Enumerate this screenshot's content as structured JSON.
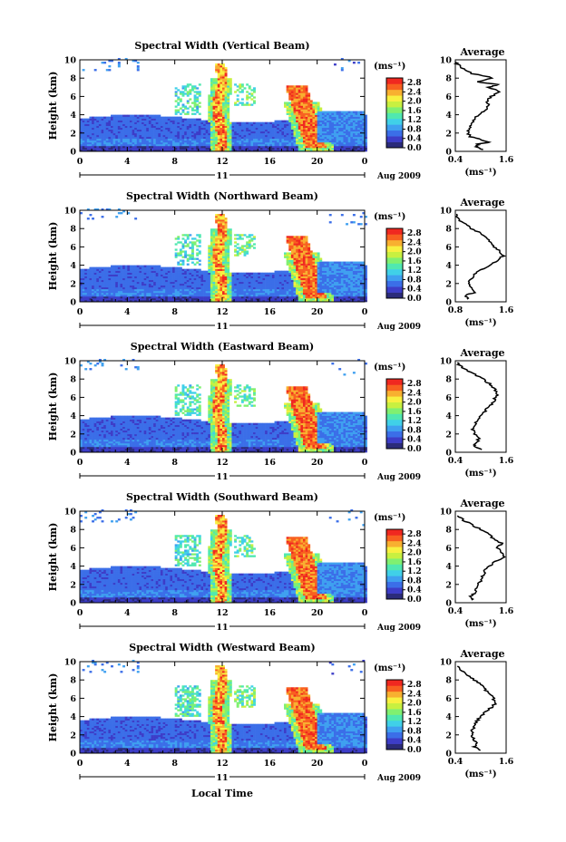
{
  "chart_data": {
    "type": "heatmap",
    "xlabel": "Local Time",
    "date_label": "Aug 2009",
    "day_label": "11",
    "x_ticks": [
      "0",
      "4",
      "8",
      "12",
      "16",
      "20",
      "0"
    ],
    "xlim": [
      0,
      24
    ],
    "ylim": [
      0,
      10
    ],
    "y_ticks": [
      "0",
      "2",
      "4",
      "6",
      "8",
      "10"
    ],
    "colorbar": {
      "unit": "(ms⁻¹)",
      "ticks": [
        "0.0",
        "0.4",
        "0.8",
        "1.2",
        "1.6",
        "2.0",
        "2.4",
        "2.8"
      ],
      "range": [
        0,
        3.0
      ],
      "colors": [
        "#2b2b7a",
        "#3d3dc8",
        "#3b6ee8",
        "#3fa0f0",
        "#40d0e8",
        "#50e8b0",
        "#80f070",
        "#c8f040",
        "#f8f040",
        "#f8b030",
        "#f86020",
        "#f02820"
      ]
    },
    "panels": [
      {
        "title": "Spectral Width (Vertical Beam)",
        "ylabel": "Height (km)",
        "avg_title": "Average",
        "avg_xticks": [
          "0.4",
          "1.6"
        ],
        "avg_xlim": [
          0.4,
          1.6
        ],
        "avg_xlabel": "(ms⁻¹)",
        "avg_profile": [
          [
            1.05,
            0.2
          ],
          [
            0.9,
            0.5
          ],
          [
            0.95,
            0.8
          ],
          [
            1.2,
            1.0
          ],
          [
            1.0,
            1.3
          ],
          [
            0.75,
            1.6
          ],
          [
            0.7,
            2.0
          ],
          [
            0.72,
            2.5
          ],
          [
            0.78,
            3.0
          ],
          [
            0.85,
            3.5
          ],
          [
            0.95,
            4.0
          ],
          [
            1.1,
            4.5
          ],
          [
            1.2,
            5.0
          ],
          [
            1.15,
            5.5
          ],
          [
            1.25,
            6.0
          ],
          [
            1.45,
            6.5
          ],
          [
            1.2,
            7.0
          ],
          [
            1.4,
            7.3
          ],
          [
            0.9,
            7.6
          ],
          [
            1.3,
            8.0
          ],
          [
            0.8,
            8.5
          ],
          [
            0.6,
            9.0
          ],
          [
            0.45,
            9.5
          ],
          [
            0.4,
            9.8
          ]
        ]
      },
      {
        "title": "Spectral Width (Northward Beam)",
        "ylabel": "Height (km)",
        "avg_title": "Average",
        "avg_xticks": [
          "0.8",
          "1.6"
        ],
        "avg_xlim": [
          0.8,
          1.6
        ],
        "avg_xlabel": "(ms⁻¹)",
        "avg_profile": [
          [
            1.0,
            0.3
          ],
          [
            0.95,
            0.7
          ],
          [
            1.1,
            1.0
          ],
          [
            1.05,
            1.5
          ],
          [
            1.0,
            2.0
          ],
          [
            1.05,
            2.5
          ],
          [
            1.1,
            3.0
          ],
          [
            1.2,
            3.5
          ],
          [
            1.35,
            4.0
          ],
          [
            1.45,
            4.5
          ],
          [
            1.55,
            5.0
          ],
          [
            1.5,
            5.5
          ],
          [
            1.42,
            6.0
          ],
          [
            1.35,
            6.5
          ],
          [
            1.3,
            7.0
          ],
          [
            1.2,
            7.5
          ],
          [
            1.05,
            8.0
          ],
          [
            0.95,
            8.5
          ],
          [
            0.85,
            9.0
          ],
          [
            0.82,
            9.6
          ]
        ]
      },
      {
        "title": "Spectral Width (Eastward Beam)",
        "ylabel": "Height (km)",
        "avg_title": "Average",
        "avg_xticks": [
          "0.4",
          "1.6"
        ],
        "avg_xlim": [
          0.4,
          1.6
        ],
        "avg_xlabel": "(ms⁻¹)",
        "avg_profile": [
          [
            1.0,
            0.3
          ],
          [
            0.85,
            0.7
          ],
          [
            0.9,
            1.0
          ],
          [
            0.95,
            1.5
          ],
          [
            0.85,
            2.0
          ],
          [
            0.8,
            2.5
          ],
          [
            0.85,
            3.0
          ],
          [
            0.9,
            3.5
          ],
          [
            1.0,
            4.0
          ],
          [
            1.1,
            4.5
          ],
          [
            1.2,
            5.0
          ],
          [
            1.3,
            5.5
          ],
          [
            1.35,
            6.0
          ],
          [
            1.4,
            6.5
          ],
          [
            1.3,
            7.0
          ],
          [
            1.2,
            7.5
          ],
          [
            1.05,
            8.0
          ],
          [
            0.85,
            8.5
          ],
          [
            0.65,
            9.0
          ],
          [
            0.5,
            9.5
          ],
          [
            0.45,
            9.8
          ]
        ]
      },
      {
        "title": "Spectral Width (Southward Beam)",
        "ylabel": "Height (km)",
        "avg_title": "Average",
        "avg_xticks": [
          "0.4",
          "1.6"
        ],
        "avg_xlim": [
          0.4,
          1.6
        ],
        "avg_xlabel": "(ms⁻¹)",
        "avg_profile": [
          [
            0.8,
            0.3
          ],
          [
            0.75,
            0.7
          ],
          [
            0.85,
            1.0
          ],
          [
            0.9,
            1.5
          ],
          [
            0.95,
            2.0
          ],
          [
            1.0,
            2.5
          ],
          [
            1.05,
            3.0
          ],
          [
            1.1,
            3.5
          ],
          [
            1.2,
            4.0
          ],
          [
            1.35,
            4.5
          ],
          [
            1.55,
            5.0
          ],
          [
            1.5,
            5.5
          ],
          [
            1.4,
            6.0
          ],
          [
            1.5,
            6.5
          ],
          [
            1.3,
            7.0
          ],
          [
            1.2,
            7.5
          ],
          [
            1.0,
            8.0
          ],
          [
            0.8,
            8.5
          ],
          [
            0.6,
            9.0
          ],
          [
            0.45,
            9.5
          ]
        ]
      },
      {
        "title": "Spectral Width (Westward Beam)",
        "ylabel": "Height (km)",
        "avg_title": "Average",
        "avg_xticks": [
          "0.4",
          "1.6"
        ],
        "avg_xlim": [
          0.4,
          1.6
        ],
        "avg_xlabel": "(ms⁻¹)",
        "avg_profile": [
          [
            1.0,
            0.3
          ],
          [
            0.85,
            0.7
          ],
          [
            0.9,
            1.0
          ],
          [
            0.85,
            1.5
          ],
          [
            0.8,
            2.0
          ],
          [
            0.8,
            2.5
          ],
          [
            0.85,
            3.0
          ],
          [
            0.9,
            3.5
          ],
          [
            1.0,
            4.0
          ],
          [
            1.1,
            4.5
          ],
          [
            1.25,
            5.0
          ],
          [
            1.35,
            5.5
          ],
          [
            1.3,
            6.0
          ],
          [
            1.2,
            6.5
          ],
          [
            1.1,
            7.0
          ],
          [
            1.0,
            7.5
          ],
          [
            0.85,
            8.0
          ],
          [
            0.7,
            8.5
          ],
          [
            0.55,
            9.0
          ],
          [
            0.45,
            9.5
          ]
        ]
      }
    ]
  }
}
